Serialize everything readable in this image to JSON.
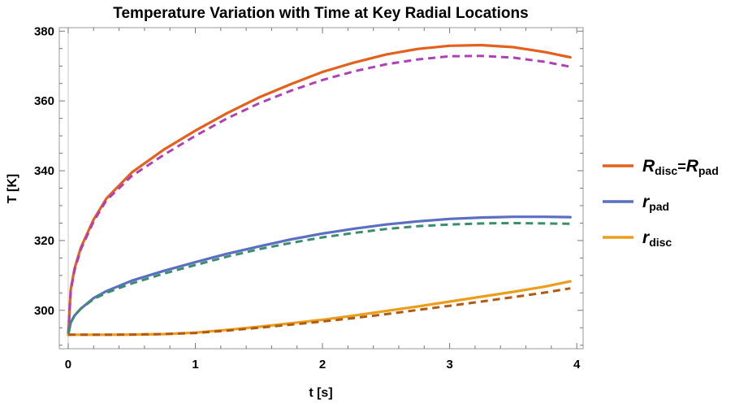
{
  "chart_data": {
    "type": "line",
    "title": "Temperature Variation with Time at Key Radial Locations",
    "xlabel": "t [s]",
    "ylabel": "T [K]",
    "xlim": [
      -0.07,
      4.05
    ],
    "ylim": [
      289,
      381
    ],
    "xticks": [
      "0",
      "1",
      "2",
      "3",
      "4"
    ],
    "yticks": [
      "300",
      "320",
      "340",
      "360",
      "380"
    ],
    "grid": false,
    "legend_position": "right",
    "x": [
      0,
      0.02,
      0.05,
      0.1,
      0.2,
      0.3,
      0.5,
      0.75,
      1.0,
      1.25,
      1.5,
      1.75,
      2.0,
      2.25,
      2.5,
      2.75,
      3.0,
      3.25,
      3.5,
      3.75,
      3.95
    ],
    "series": [
      {
        "name": "R_disc=R_pad",
        "legend": {
          "main": "R",
          "sub": "disc",
          "eq": "=",
          "main2": "R",
          "sub2": "pad"
        },
        "color": "#e3611c",
        "dashed": false,
        "values": [
          293,
          306,
          312,
          318,
          326,
          332,
          339.5,
          346,
          351.5,
          356.5,
          361,
          364.8,
          368.3,
          371,
          373.3,
          374.9,
          375.8,
          376,
          375.4,
          374,
          372.5
        ]
      },
      {
        "name": "R_disc=R_pad dashed",
        "color": "#b040b8",
        "dashed": true,
        "values": [
          293,
          305.5,
          311.5,
          317.5,
          325.5,
          331.5,
          338.5,
          344.5,
          350,
          355,
          359.3,
          362.9,
          366,
          368.5,
          370.5,
          371.9,
          372.8,
          372.9,
          372.4,
          371.2,
          369.8
        ]
      },
      {
        "name": "r_pad",
        "legend": {
          "main": "r",
          "sub": "pad"
        },
        "color": "#5b6fc2",
        "dashed": false,
        "values": [
          293,
          296.5,
          298.5,
          300.5,
          303.5,
          305.5,
          308.5,
          311.3,
          313.8,
          316.2,
          318.3,
          320.3,
          322,
          323.4,
          324.6,
          325.5,
          326.2,
          326.6,
          326.8,
          326.8,
          326.7
        ]
      },
      {
        "name": "r_pad dashed",
        "color": "#3a8f6b",
        "dashed": true,
        "values": [
          293,
          296.5,
          298.5,
          300.5,
          303.2,
          305,
          307.7,
          310.5,
          313,
          315.4,
          317.5,
          319.3,
          320.9,
          322.2,
          323.3,
          324.1,
          324.6,
          324.9,
          325,
          324.9,
          324.8
        ]
      },
      {
        "name": "r_disc",
        "legend": {
          "main": "r",
          "sub": "disc"
        },
        "color": "#eb9e1c",
        "dashed": false,
        "values": [
          293,
          293,
          293,
          293,
          293,
          293,
          293.05,
          293.2,
          293.6,
          294.4,
          295.3,
          296.3,
          297.3,
          298.5,
          299.8,
          301.1,
          302.5,
          303.9,
          305.3,
          306.8,
          308.3
        ]
      },
      {
        "name": "r_disc dashed",
        "color": "#b05a14",
        "dashed": true,
        "values": [
          293,
          293,
          293,
          293,
          293,
          293,
          293.05,
          293.2,
          293.5,
          294.2,
          295,
          295.9,
          296.8,
          297.8,
          298.9,
          300.1,
          301.3,
          302.5,
          303.8,
          305.1,
          306.3
        ]
      }
    ]
  }
}
